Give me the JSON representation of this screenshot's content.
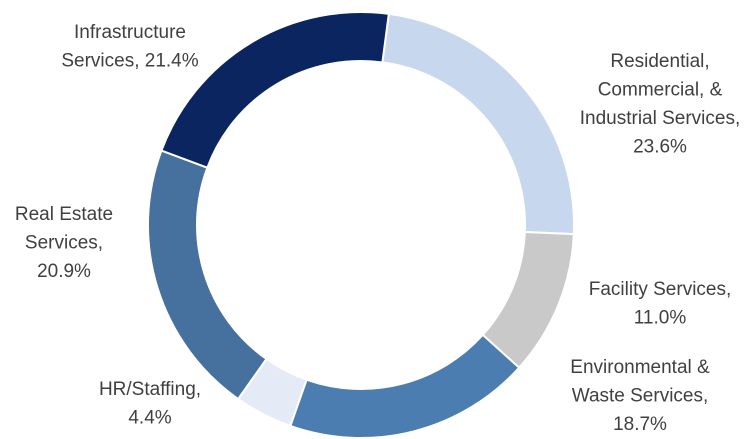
{
  "chart_data": {
    "type": "donut",
    "labels": [
      [
        "Residential,",
        "Commercial, &",
        "Industrial Services,",
        "23.6%"
      ],
      [
        "Facility Services,",
        "11.0%"
      ],
      [
        "Environmental &",
        "Waste Services,",
        "18.7%"
      ],
      [
        "HR/Staffing,",
        "4.4%"
      ],
      [
        "Real Estate",
        "Services,",
        "20.9%"
      ],
      [
        "Infrastructure",
        "Services, 21.4%"
      ]
    ],
    "values": [
      23.6,
      11.0,
      18.7,
      4.4,
      20.9,
      21.4
    ],
    "colors": [
      "#c6d7ee",
      "#c9c9c9",
      "#4b7db1",
      "#e4eaf6",
      "#46709d",
      "#0b2560"
    ]
  }
}
